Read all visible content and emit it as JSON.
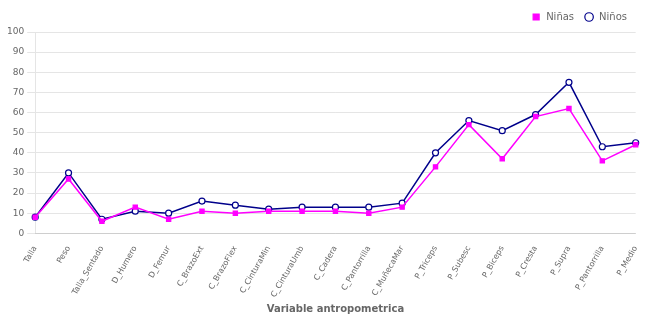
{
  "chart_data": {
    "type": "line",
    "x_label": "Variable antropometrica",
    "categories": [
      "Talla",
      "Peso",
      "Talla_Sentado",
      "D_Humero",
      "D_Femur",
      "C_BrazoExt",
      "C_BrazoFlex",
      "C_CinturaMin",
      "C_CinturaUmb",
      "C_Cadera",
      "C_Pantorrilla",
      "C_MuñecaMar",
      "P_Triceps",
      "P_Subesc",
      "P_Biceps",
      "P_Cresta",
      "P_Supra",
      "P_Pantorrilla",
      "P_Medio"
    ],
    "series": [
      {
        "name": "Niñas",
        "color": "#FF00FF",
        "marker": "square",
        "values": [
          8,
          27,
          6,
          13,
          7,
          11,
          10,
          11,
          11,
          11,
          10,
          13,
          33,
          54,
          37,
          58,
          62,
          36,
          44
        ]
      },
      {
        "name": "Niños",
        "color": "#00008B",
        "marker": "circle",
        "values": [
          8,
          30,
          7,
          11,
          10,
          16,
          14,
          12,
          13,
          13,
          13,
          15,
          40,
          56,
          51,
          59,
          75,
          43,
          45
        ]
      }
    ],
    "ylim": [
      0,
      100
    ],
    "yticks": [
      0,
      10,
      20,
      30,
      40,
      50,
      60,
      70,
      80,
      90,
      100
    ],
    "grid": true,
    "legend": "upper right"
  }
}
